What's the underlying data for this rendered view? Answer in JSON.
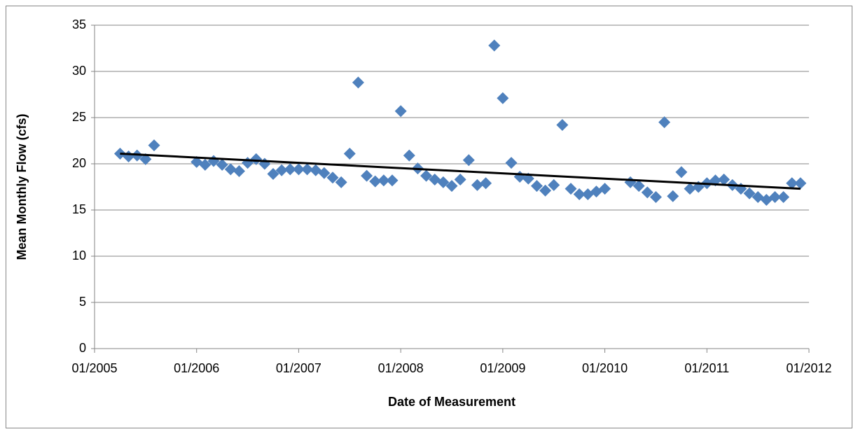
{
  "chart_data": {
    "type": "scatter",
    "xlabel": "Date of Measurement",
    "ylabel": "Mean Monthly Flow (cfs)",
    "xlim": [
      "01/2005",
      "01/2012"
    ],
    "xticks": [
      "01/2005",
      "01/2006",
      "01/2007",
      "01/2008",
      "01/2009",
      "01/2010",
      "01/2011",
      "01/2012"
    ],
    "ylim": [
      0,
      35
    ],
    "yticks": [
      0,
      5,
      10,
      15,
      20,
      25,
      30,
      35
    ],
    "grid": true,
    "series": [
      {
        "color": "#4f81bd",
        "x": [
          "04/2005",
          "05/2005",
          "06/2005",
          "07/2005",
          "08/2005",
          "01/2006",
          "02/2006",
          "03/2006",
          "04/2006",
          "05/2006",
          "06/2006",
          "07/2006",
          "08/2006",
          "09/2006",
          "10/2006",
          "11/2006",
          "12/2006",
          "01/2007",
          "02/2007",
          "03/2007",
          "04/2007",
          "05/2007",
          "06/2007",
          "07/2007",
          "08/2007",
          "09/2007",
          "10/2007",
          "11/2007",
          "12/2007",
          "01/2008",
          "02/2008",
          "03/2008",
          "04/2008",
          "05/2008",
          "06/2008",
          "07/2008",
          "08/2008",
          "09/2008",
          "10/2008",
          "11/2008",
          "12/2008",
          "01/2009",
          "02/2009",
          "03/2009",
          "04/2009",
          "05/2009",
          "06/2009",
          "07/2009",
          "08/2009",
          "09/2009",
          "10/2009",
          "11/2009",
          "12/2009",
          "01/2010",
          "04/2010",
          "05/2010",
          "06/2010",
          "07/2010",
          "08/2010",
          "09/2010",
          "10/2010",
          "11/2010",
          "12/2010",
          "01/2011",
          "02/2011",
          "03/2011",
          "04/2011",
          "05/2011",
          "06/2011",
          "07/2011",
          "08/2011",
          "09/2011",
          "10/2011",
          "11/2011",
          "12/2011"
        ],
        "values": [
          21.1,
          20.8,
          20.9,
          20.5,
          22.0,
          20.2,
          19.9,
          20.3,
          19.9,
          19.4,
          19.2,
          20.1,
          20.5,
          20.0,
          18.9,
          19.3,
          19.4,
          19.4,
          19.4,
          19.3,
          19.0,
          18.5,
          18.0,
          21.1,
          28.8,
          18.7,
          18.1,
          18.2,
          18.2,
          25.7,
          20.9,
          19.5,
          18.7,
          18.3,
          18.0,
          17.6,
          18.3,
          20.4,
          17.7,
          17.9,
          32.8,
          27.1,
          20.1,
          18.6,
          18.4,
          17.6,
          17.1,
          17.7,
          24.2,
          17.3,
          16.7,
          16.7,
          17.0,
          17.3,
          18.0,
          17.6,
          16.9,
          16.4,
          24.5,
          16.5,
          19.1,
          17.3,
          17.5,
          17.9,
          18.2,
          18.3,
          17.7,
          17.3,
          16.8,
          16.4,
          16.1,
          16.4,
          16.4,
          17.9,
          17.9
        ]
      }
    ],
    "trendline": {
      "color": "#000000",
      "x": [
        "04/2005",
        "12/2011"
      ],
      "values": [
        21.1,
        17.3
      ]
    }
  }
}
